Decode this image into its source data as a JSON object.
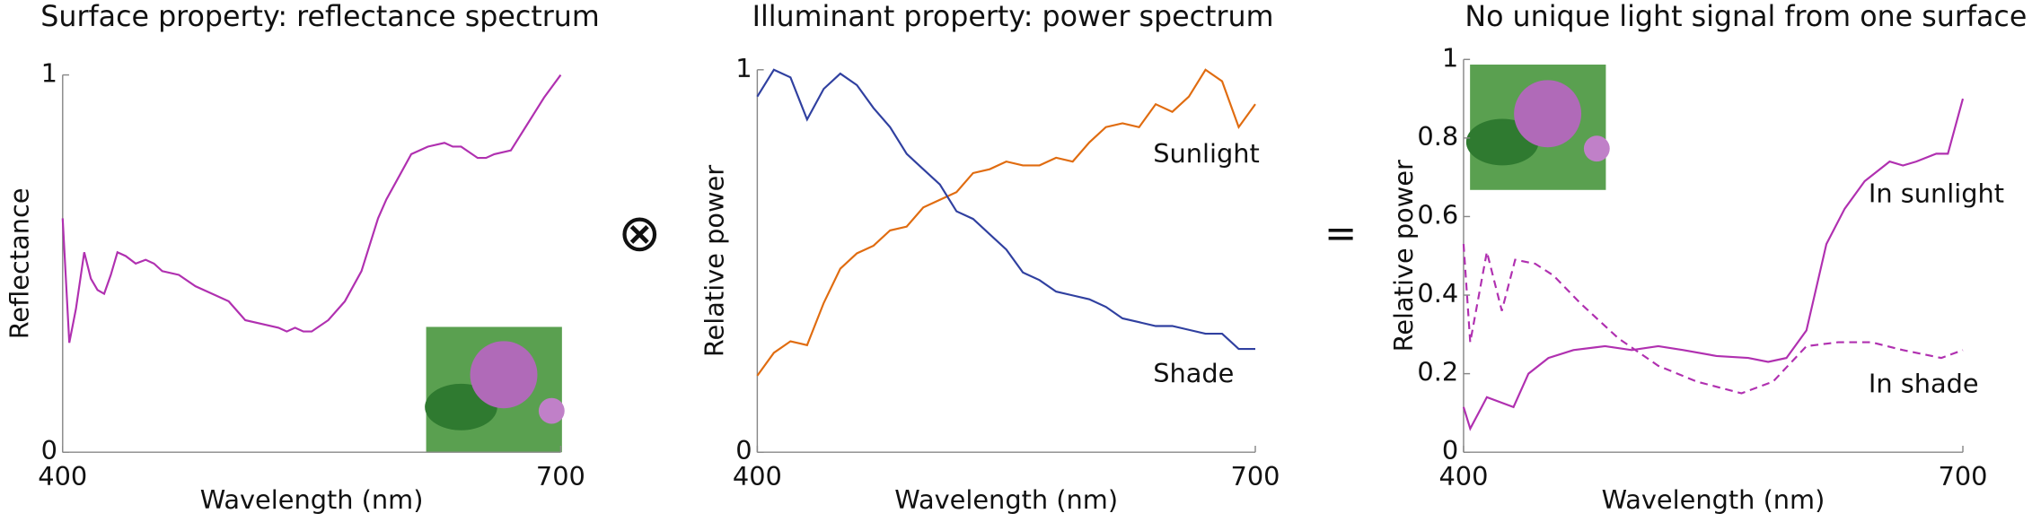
{
  "operators": [
    "⊗",
    "="
  ],
  "chart_data": [
    {
      "type": "line",
      "title": "Surface property: reflectance spectrum",
      "x_label": "Wavelength (nm)",
      "y_label": "Reflectance",
      "xlim": [
        400,
        700
      ],
      "xticks": [
        400,
        700
      ],
      "ylim": [
        0,
        1
      ],
      "yticks": [
        0,
        1
      ],
      "series": [
        {
          "name": "Reflectance",
          "color": "#b030b0",
          "dash": false,
          "x": [
            400,
            404,
            408,
            413,
            417,
            421,
            425,
            429,
            433,
            438,
            444,
            450,
            455,
            460,
            470,
            480,
            490,
            500,
            510,
            520,
            530,
            535,
            540,
            545,
            550,
            560,
            570,
            580,
            590,
            595,
            600,
            610,
            620,
            630,
            635,
            640,
            650,
            655,
            660,
            670,
            680,
            690,
            700
          ],
          "values": [
            0.62,
            0.29,
            0.38,
            0.53,
            0.46,
            0.43,
            0.42,
            0.47,
            0.53,
            0.52,
            0.5,
            0.51,
            0.5,
            0.48,
            0.47,
            0.44,
            0.42,
            0.4,
            0.35,
            0.34,
            0.33,
            0.32,
            0.33,
            0.32,
            0.32,
            0.35,
            0.4,
            0.48,
            0.62,
            0.67,
            0.71,
            0.79,
            0.81,
            0.82,
            0.81,
            0.81,
            0.78,
            0.78,
            0.79,
            0.8,
            0.87,
            0.94,
            1.0
          ]
        }
      ]
    },
    {
      "type": "line",
      "title": "Illuminant property: power spectrum",
      "x_label": "Wavelength (nm)",
      "y_label": "Relative power",
      "xlim": [
        400,
        700
      ],
      "xticks": [
        400,
        700
      ],
      "ylim": [
        0,
        1
      ],
      "yticks": [
        0,
        1
      ],
      "series": [
        {
          "name": "Sunlight",
          "color": "#e06c10",
          "dash": false,
          "x": [
            400,
            410,
            420,
            430,
            440,
            450,
            460,
            470,
            480,
            490,
            500,
            510,
            520,
            530,
            540,
            550,
            560,
            570,
            580,
            590,
            600,
            610,
            620,
            630,
            640,
            650,
            660,
            670,
            680,
            690,
            700
          ],
          "values": [
            0.2,
            0.26,
            0.29,
            0.28,
            0.39,
            0.48,
            0.52,
            0.54,
            0.58,
            0.59,
            0.64,
            0.66,
            0.68,
            0.73,
            0.74,
            0.76,
            0.75,
            0.75,
            0.77,
            0.76,
            0.81,
            0.85,
            0.86,
            0.85,
            0.91,
            0.89,
            0.93,
            1.0,
            0.97,
            0.85,
            0.91
          ]
        },
        {
          "name": "Shade",
          "color": "#3040a0",
          "dash": false,
          "x": [
            400,
            410,
            420,
            430,
            440,
            450,
            460,
            470,
            480,
            490,
            500,
            510,
            520,
            530,
            540,
            550,
            560,
            570,
            580,
            590,
            600,
            610,
            620,
            630,
            640,
            650,
            660,
            670,
            680,
            690,
            700
          ],
          "values": [
            0.93,
            1.0,
            0.98,
            0.87,
            0.95,
            0.99,
            0.96,
            0.9,
            0.85,
            0.78,
            0.74,
            0.7,
            0.63,
            0.61,
            0.57,
            0.53,
            0.47,
            0.45,
            0.42,
            0.41,
            0.4,
            0.38,
            0.35,
            0.34,
            0.33,
            0.33,
            0.32,
            0.31,
            0.31,
            0.27,
            0.27
          ]
        }
      ]
    },
    {
      "type": "line",
      "title": "No unique light signal from one surface",
      "x_label": "Wavelength (nm)",
      "y_label": "Relative power",
      "xlim": [
        400,
        700
      ],
      "xticks": [
        400,
        700
      ],
      "ylim": [
        0,
        1
      ],
      "yticks": [
        0,
        0.2,
        0.4,
        0.6,
        0.8,
        1
      ],
      "series": [
        {
          "name": "In sunlight",
          "color": "#b030b0",
          "dash": false,
          "x": [
            400,
            404,
            414,
            430,
            439,
            451,
            466,
            485,
            501,
            517,
            532,
            552,
            571,
            583,
            594,
            606,
            618,
            629,
            641,
            656,
            664,
            672,
            684,
            691,
            700
          ],
          "values": [
            0.115,
            0.06,
            0.14,
            0.115,
            0.2,
            0.24,
            0.26,
            0.27,
            0.26,
            0.27,
            0.26,
            0.245,
            0.24,
            0.23,
            0.24,
            0.31,
            0.53,
            0.62,
            0.69,
            0.74,
            0.73,
            0.74,
            0.76,
            0.76,
            0.9
          ]
        },
        {
          "name": "In shade",
          "color": "#b030b0",
          "dash": true,
          "x": [
            400,
            404,
            414,
            423,
            431,
            443,
            454,
            470,
            493,
            517,
            540,
            567,
            586,
            606,
            625,
            645,
            664,
            687,
            700
          ],
          "values": [
            0.53,
            0.28,
            0.51,
            0.36,
            0.49,
            0.48,
            0.45,
            0.38,
            0.29,
            0.22,
            0.18,
            0.15,
            0.18,
            0.27,
            0.28,
            0.28,
            0.26,
            0.24,
            0.26
          ]
        }
      ]
    }
  ]
}
